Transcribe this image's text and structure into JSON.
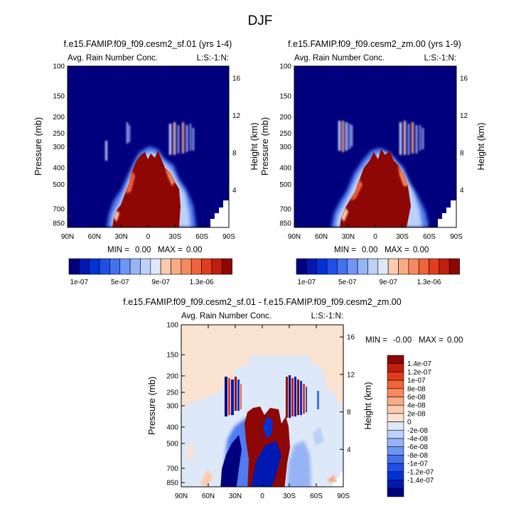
{
  "figure": {
    "title": "DJF"
  },
  "palette": {
    "neg": [
      "#00007f",
      "#0019b2",
      "#0032d6",
      "#204ee6",
      "#4470ee",
      "#6e95f2",
      "#96b4f5",
      "#bcd1f7",
      "#dde8f8"
    ],
    "pos": [
      "#fbe3d2",
      "#fbcbaf",
      "#f9ab86",
      "#f6895e",
      "#f1633b",
      "#e23c1e",
      "#c01e0e",
      "#8e0704"
    ]
  },
  "chart_data": [
    {
      "type": "heatmap",
      "id": "panel-sf01",
      "title": "f.e15.FAMIP.f09_f09.cesm2_sf.01 (yrs 1-4)",
      "left_label": "Avg. Rain Number Conc.",
      "right_label": "L:S:-1:N:",
      "ylabel": "Pressure (mb)",
      "ylabel_right": "Height (km)",
      "x_ticks": [
        "90N",
        "60N",
        "30N",
        "0",
        "30S",
        "60S",
        "90S"
      ],
      "y_ticks": [
        "100",
        "150",
        "200",
        "250",
        "300",
        "400",
        "500",
        "700",
        "850"
      ],
      "y_ticks_right": [
        "16",
        "12",
        "8",
        "4"
      ],
      "stats": {
        "min_label": "MIN =",
        "min": "0.00",
        "max_label": "MAX =",
        "max": "0.00"
      },
      "colorbar_labels": [
        "1e-07",
        "5e-07",
        "9e-07",
        "1.3e-06"
      ],
      "y_scale": "log",
      "ylim": [
        100,
        900
      ],
      "xlim": [
        "90N",
        "90S"
      ]
    },
    {
      "type": "heatmap",
      "id": "panel-zm00",
      "title": "f.e15.FAMIP.f09_f09.cesm2_zm.00 (yrs 1-9)",
      "left_label": "Avg. Rain Number Conc.",
      "right_label": "L:S:-1:N:",
      "ylabel": "Pressure (mb)",
      "ylabel_right": "Height (km)",
      "x_ticks": [
        "90N",
        "60N",
        "30N",
        "0",
        "30S",
        "60S",
        "90S"
      ],
      "y_ticks": [
        "100",
        "150",
        "200",
        "250",
        "300",
        "400",
        "500",
        "700",
        "850"
      ],
      "y_ticks_right": [
        "16",
        "12",
        "8",
        "4"
      ],
      "stats": {
        "min_label": "MIN =",
        "min": "0.00",
        "max_label": "MAX =",
        "max": "0.00"
      },
      "colorbar_labels": [
        "1e-07",
        "5e-07",
        "9e-07",
        "1.3e-06"
      ],
      "y_scale": "log",
      "ylim": [
        100,
        900
      ],
      "xlim": [
        "90N",
        "90S"
      ]
    },
    {
      "type": "heatmap",
      "id": "panel-diff",
      "title": "f.e15.FAMIP.f09_f09.cesm2_sf.01 - f.e15.FAMIP.f09_f09.cesm2_zm.00",
      "left_label": "Avg. Rain Number Conc.",
      "right_label": "L:S:-1:N:",
      "ylabel": "Pressure (mb)",
      "ylabel_right": "Height (km)",
      "x_ticks": [
        "90N",
        "60N",
        "30N",
        "0",
        "30S",
        "60S",
        "90S"
      ],
      "y_ticks": [
        "100",
        "150",
        "200",
        "250",
        "300",
        "400",
        "500",
        "700",
        "850"
      ],
      "y_ticks_right": [
        "16",
        "12",
        "8",
        "4"
      ],
      "stats": {
        "min_label": "MIN =",
        "min": "-0.00",
        "max_label": "MAX =",
        "max": "0.00"
      },
      "colorbar_labels": [
        "1.4e-07",
        "1.2e-07",
        "1e-07",
        "8e-08",
        "6e-08",
        "4e-08",
        "2e-08",
        "0",
        "-2e-08",
        "-4e-08",
        "-6e-08",
        "-8e-08",
        "-1e-07",
        "-1.2e-07",
        "-1.4e-07"
      ],
      "y_scale": "log",
      "ylim": [
        100,
        900
      ],
      "xlim": [
        "90N",
        "90S"
      ]
    }
  ]
}
